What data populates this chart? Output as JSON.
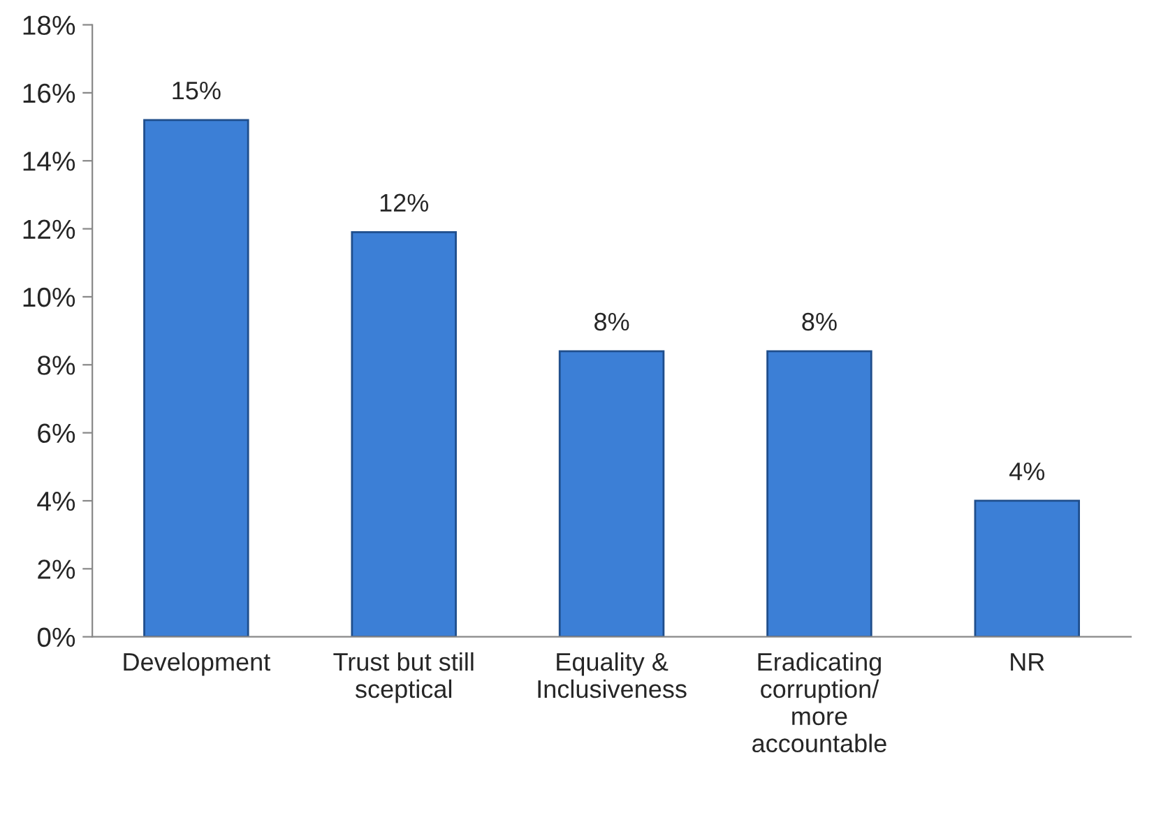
{
  "chart_data": {
    "type": "bar",
    "categories": [
      "Development",
      "Trust but still\nsceptical",
      "Equality &\nInclusiveness",
      "Eradicating\ncorruption/\nmore\naccountable",
      "NR"
    ],
    "values": [
      15.2,
      11.9,
      8.4,
      8.4,
      4.0
    ],
    "value_labels": [
      "15%",
      "12%",
      "8%",
      "8%",
      "4%"
    ],
    "color": "#3c7fd6",
    "ylim": [
      0,
      18
    ],
    "yticks": [
      {
        "value": 0,
        "label": "0%"
      },
      {
        "value": 2,
        "label": "2%"
      },
      {
        "value": 4,
        "label": "4%"
      },
      {
        "value": 6,
        "label": "6%"
      },
      {
        "value": 8,
        "label": "8%"
      },
      {
        "value": 10,
        "label": "10%"
      },
      {
        "value": 12,
        "label": "12%"
      },
      {
        "value": 14,
        "label": "14%"
      },
      {
        "value": 16,
        "label": "16%"
      },
      {
        "value": 18,
        "label": "18%"
      }
    ],
    "grid": false,
    "legend": false
  }
}
